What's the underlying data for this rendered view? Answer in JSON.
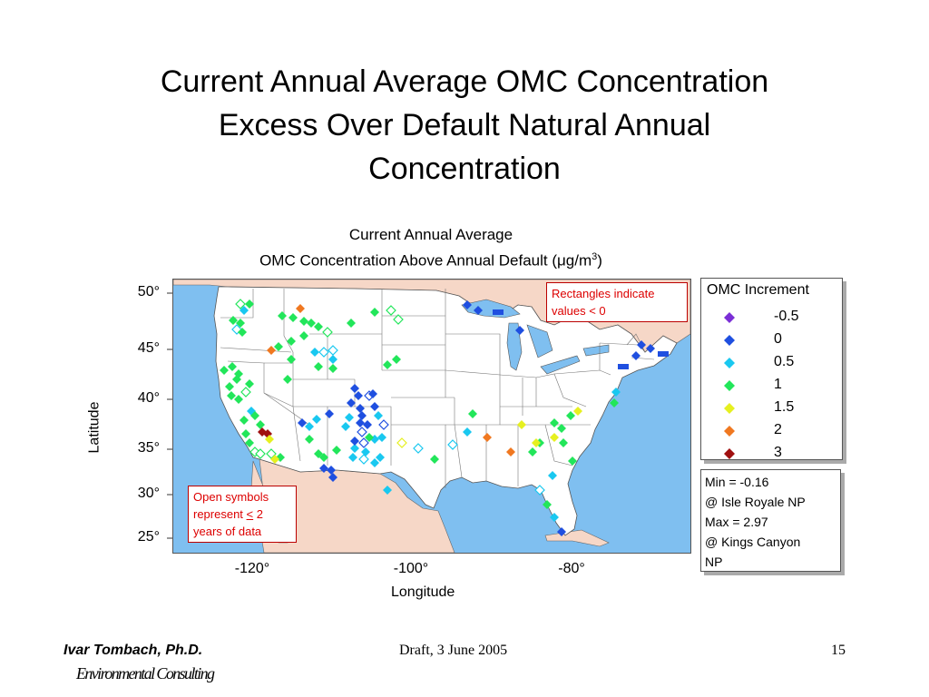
{
  "slide": {
    "title_lines": [
      "Current Annual Average OMC Concentration",
      "Excess Over Default Natural Annual",
      "Concentration"
    ]
  },
  "map": {
    "title_line1": "Current Annual Average",
    "title_line2_prefix": "OMC Concentration Above Annual Default (",
    "title_line2_unit": "μg/m",
    "title_line2_sup": "3",
    "title_line2_suffix": ")",
    "y_axis_title": "Latitude",
    "x_axis_title": "Longitude",
    "y_ticks": [
      "50°",
      "45°",
      "40°",
      "35°",
      "30°",
      "25°"
    ],
    "x_ticks": [
      "-120°",
      "-100°",
      "-80°"
    ],
    "note_rectangles": [
      "Rectangles indicate",
      "values < 0"
    ],
    "note_open": [
      "Open symbols",
      "represent ",
      "<",
      " 2",
      "years of data"
    ],
    "colors": {
      "ocean": "#7fbff0",
      "land_us": "#ffffff",
      "land_other": "#f6d7c7",
      "lakes": "#7fbff0",
      "note_text": "#d00000"
    }
  },
  "legend": {
    "title": "OMC Increment",
    "items": [
      {
        "label": "-0.5",
        "color": "#7b2fd6"
      },
      {
        "label": "0",
        "color": "#1f4fe0"
      },
      {
        "label": "0.5",
        "color": "#19c8f0"
      },
      {
        "label": "1",
        "color": "#22e65a"
      },
      {
        "label": "1.5",
        "color": "#e6f020"
      },
      {
        "label": "2",
        "color": "#f07820"
      },
      {
        "label": "3",
        "color": "#a01010"
      }
    ]
  },
  "stats": {
    "lines": [
      "Min = -0.16",
      "@ Isle Royale NP",
      "Max = 2.97",
      "@ Kings Canyon",
      "NP"
    ]
  },
  "footer": {
    "author": "Ivar Tombach, Ph.D.",
    "org": "Environmental Consulting",
    "draft": "Draft, 3 June 2005",
    "page": "15"
  }
}
